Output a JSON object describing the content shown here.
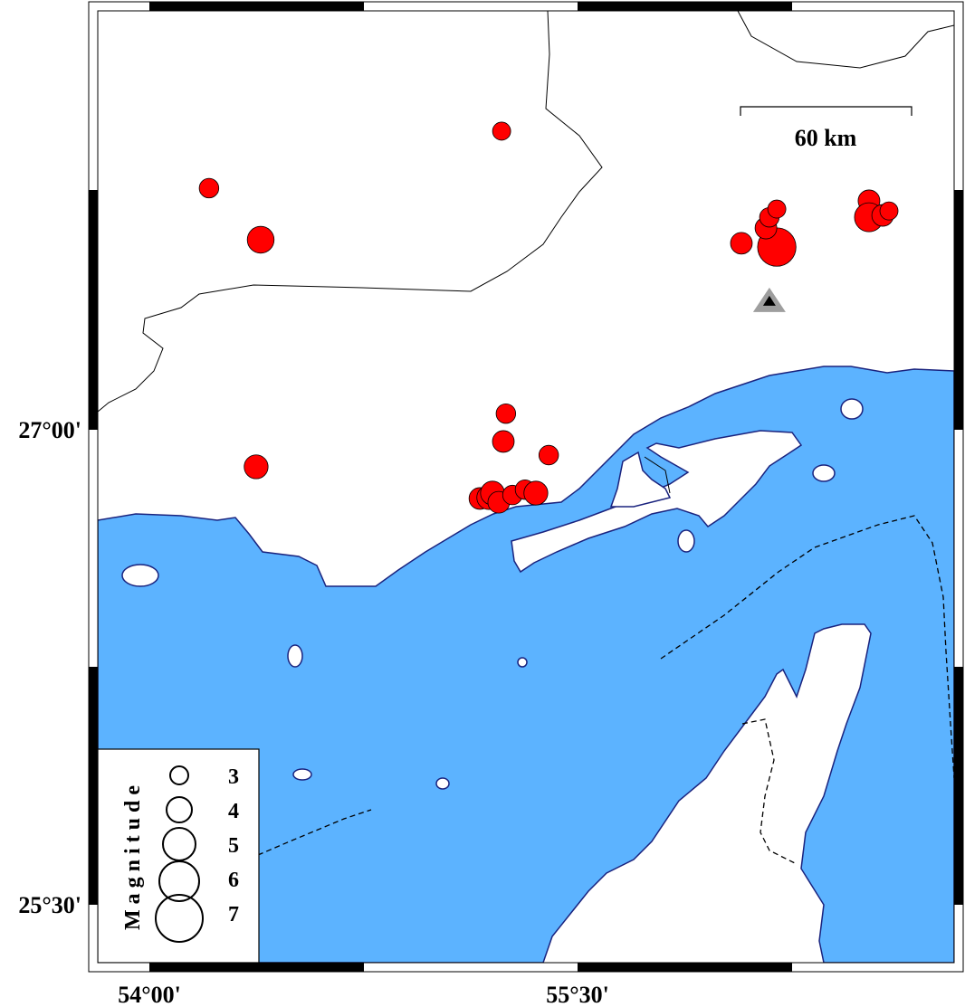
{
  "map": {
    "colors": {
      "sea": "#5cb3ff",
      "land": "#ffffff",
      "coast": "#1a237e",
      "event": "#ff0000",
      "station": "#9e9e9e"
    },
    "x_ticks": [
      {
        "lon": 54.0,
        "label": "54°00'"
      },
      {
        "lon": 55.5,
        "label": "55°30'"
      }
    ],
    "y_ticks": [
      {
        "lat": 27.0,
        "label": "27°00'"
      },
      {
        "lat": 25.5,
        "label": "25°30'"
      }
    ],
    "scale_bar": {
      "label": "60 km",
      "length_km": 60
    },
    "station": {
      "lon": 56.172,
      "lat": 27.406,
      "icon": "triangle"
    },
    "events": [
      {
        "lon": 55.234,
        "lat": 27.943,
        "mag": 3.0
      },
      {
        "lon": 54.209,
        "lat": 27.763,
        "mag": 3.2
      },
      {
        "lon": 54.39,
        "lat": 27.6,
        "mag": 4.2
      },
      {
        "lon": 54.374,
        "lat": 26.883,
        "mag": 3.8
      },
      {
        "lon": 55.249,
        "lat": 27.051,
        "mag": 3.2
      },
      {
        "lon": 55.24,
        "lat": 26.963,
        "mag": 3.5
      },
      {
        "lon": 55.399,
        "lat": 26.92,
        "mag": 3.2
      },
      {
        "lon": 55.158,
        "lat": 26.783,
        "mag": 3.5
      },
      {
        "lon": 55.189,
        "lat": 26.786,
        "mag": 3.8
      },
      {
        "lon": 55.202,
        "lat": 26.8,
        "mag": 3.8
      },
      {
        "lon": 55.224,
        "lat": 26.771,
        "mag": 3.5
      },
      {
        "lon": 55.272,
        "lat": 26.794,
        "mag": 3.2
      },
      {
        "lon": 55.316,
        "lat": 26.811,
        "mag": 3.2
      },
      {
        "lon": 55.354,
        "lat": 26.8,
        "mag": 3.8
      },
      {
        "lon": 56.074,
        "lat": 27.589,
        "mag": 3.5
      },
      {
        "lon": 56.198,
        "lat": 27.577,
        "mag": 5.8
      },
      {
        "lon": 56.16,
        "lat": 27.637,
        "mag": 3.5
      },
      {
        "lon": 56.172,
        "lat": 27.671,
        "mag": 3.2
      },
      {
        "lon": 56.198,
        "lat": 27.697,
        "mag": 3.0
      },
      {
        "lon": 56.521,
        "lat": 27.723,
        "mag": 3.5
      },
      {
        "lon": 56.521,
        "lat": 27.671,
        "mag": 4.5
      },
      {
        "lon": 56.569,
        "lat": 27.677,
        "mag": 3.5
      },
      {
        "lon": 56.591,
        "lat": 27.691,
        "mag": 3.0
      }
    ]
  },
  "legend": {
    "title": "Magnitude",
    "entries": [
      {
        "mag": 3,
        "label": "3"
      },
      {
        "mag": 4,
        "label": "4"
      },
      {
        "mag": 5,
        "label": "5"
      },
      {
        "mag": 6,
        "label": "6"
      },
      {
        "mag": 7,
        "label": "7"
      }
    ]
  }
}
